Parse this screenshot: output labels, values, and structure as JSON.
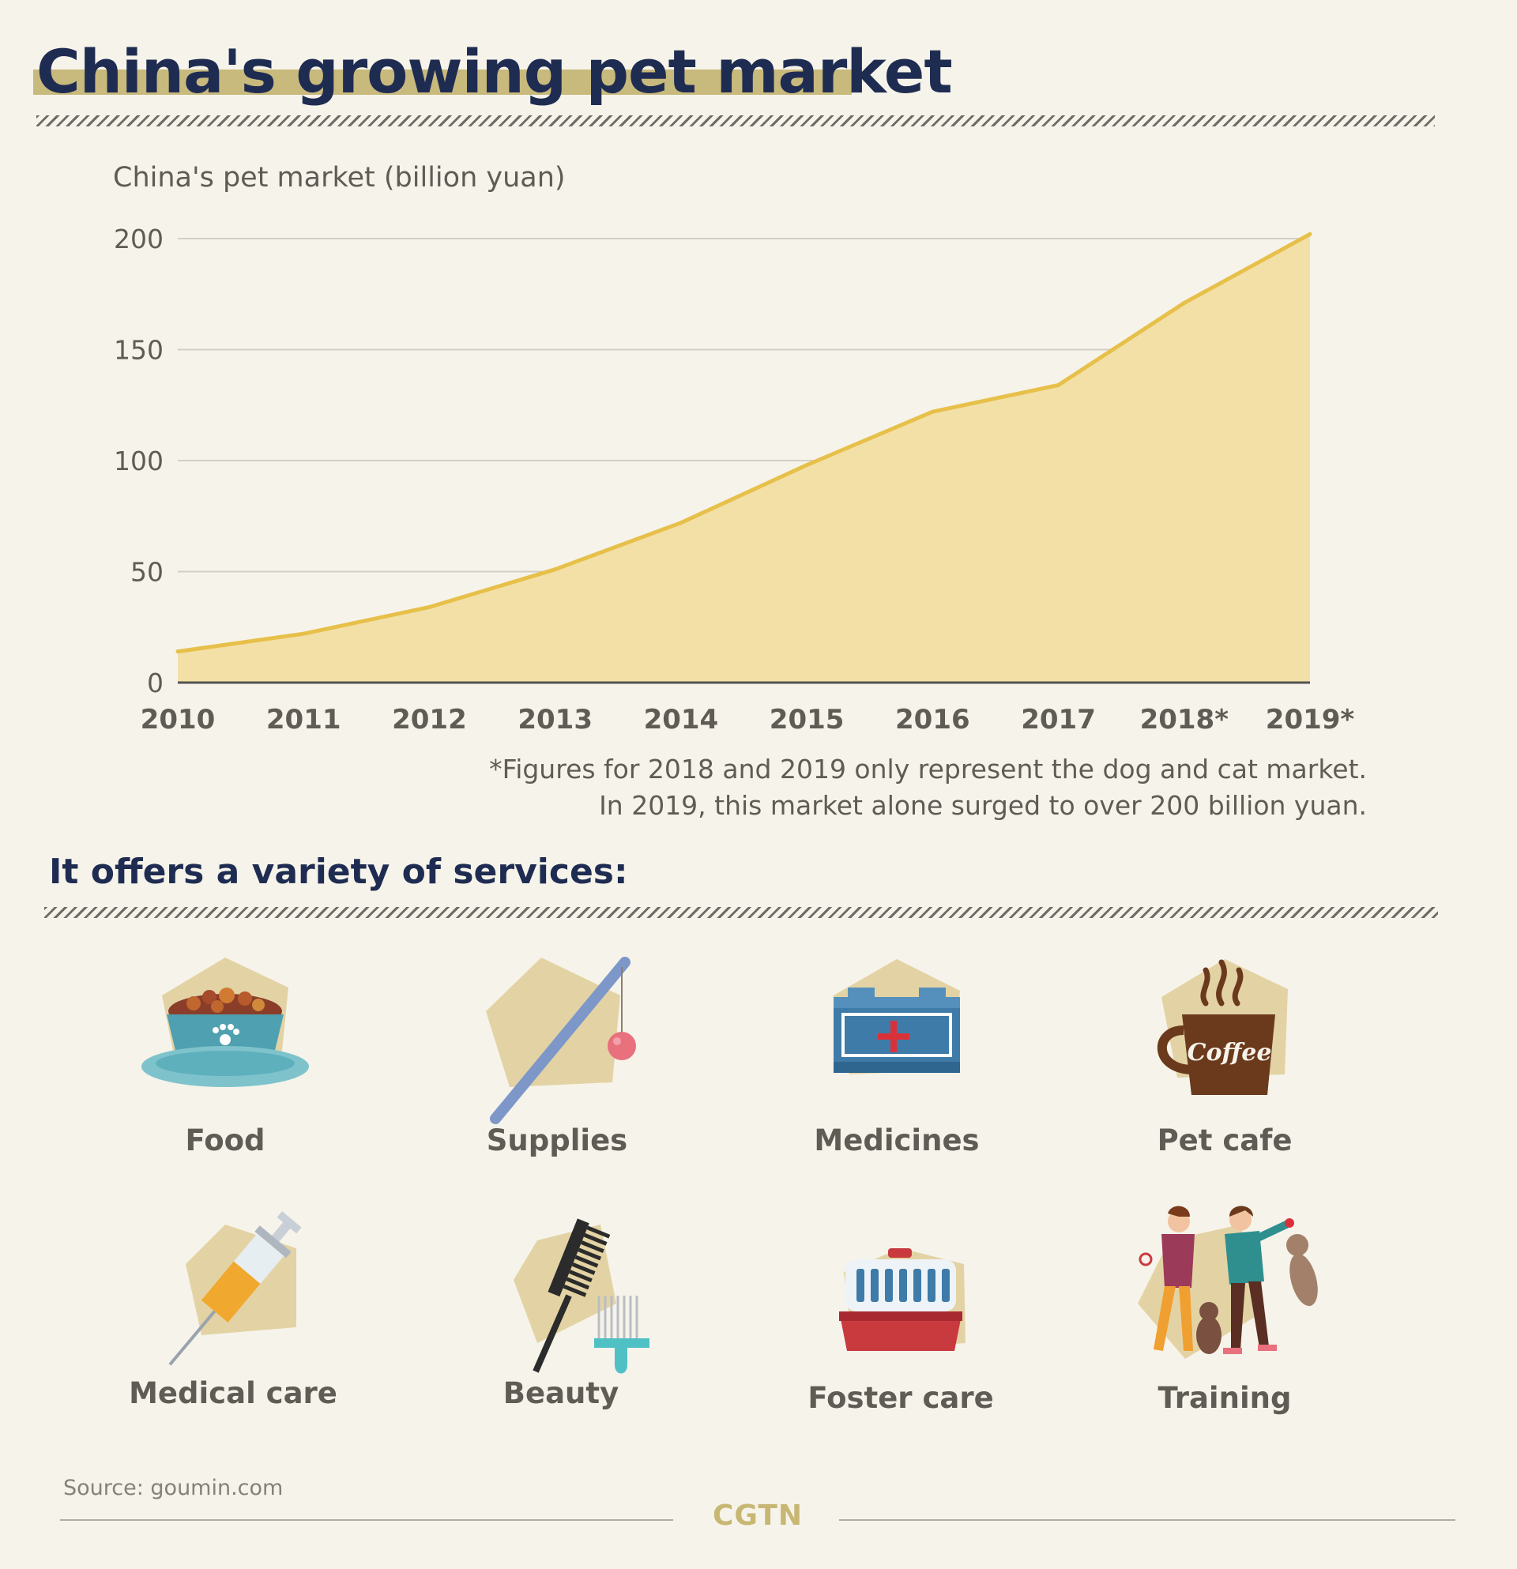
{
  "title": "China's growing pet market",
  "chart_data": {
    "type": "area",
    "ylabel": "China's pet market (billion yuan)",
    "x": [
      "2010",
      "2011",
      "2012",
      "2013",
      "2014",
      "2015",
      "2016",
      "2017",
      "2018*",
      "2019*"
    ],
    "values": [
      14,
      22,
      34,
      51,
      72,
      98,
      122,
      134,
      171,
      202
    ],
    "yticks": [
      0,
      50,
      100,
      150,
      200
    ],
    "ylim": [
      0,
      200
    ],
    "grid": true,
    "colors": {
      "line": "#e7c04a",
      "fill": "#f2e0a7"
    }
  },
  "footnote": {
    "line1": "*Figures for 2018 and 2019 only represent the dog and cat market.",
    "line2": "In 2019, this market alone surged to over 200 billion yuan."
  },
  "services": {
    "heading": "It offers a variety of services:",
    "items": [
      {
        "label": "Food",
        "icon": "pet-food-bowl-icon"
      },
      {
        "label": "Supplies",
        "icon": "cat-teaser-wand-icon"
      },
      {
        "label": "Medicines",
        "icon": "first-aid-kit-icon"
      },
      {
        "label": "Pet cafe",
        "icon": "coffee-cup-icon",
        "icon_text": "Coffee"
      },
      {
        "label": "Medical care",
        "icon": "syringe-icon"
      },
      {
        "label": "Beauty",
        "icon": "comb-and-brush-icon"
      },
      {
        "label": "Foster care",
        "icon": "pet-carrier-icon"
      },
      {
        "label": "Training",
        "icon": "dog-training-icon"
      }
    ]
  },
  "source": "Source: goumin.com",
  "brand": "CGTN",
  "colors": {
    "title": "#1f2c52",
    "accent": "#c8b97c",
    "background": "#f6f3ea",
    "text": "#5f5c56"
  }
}
